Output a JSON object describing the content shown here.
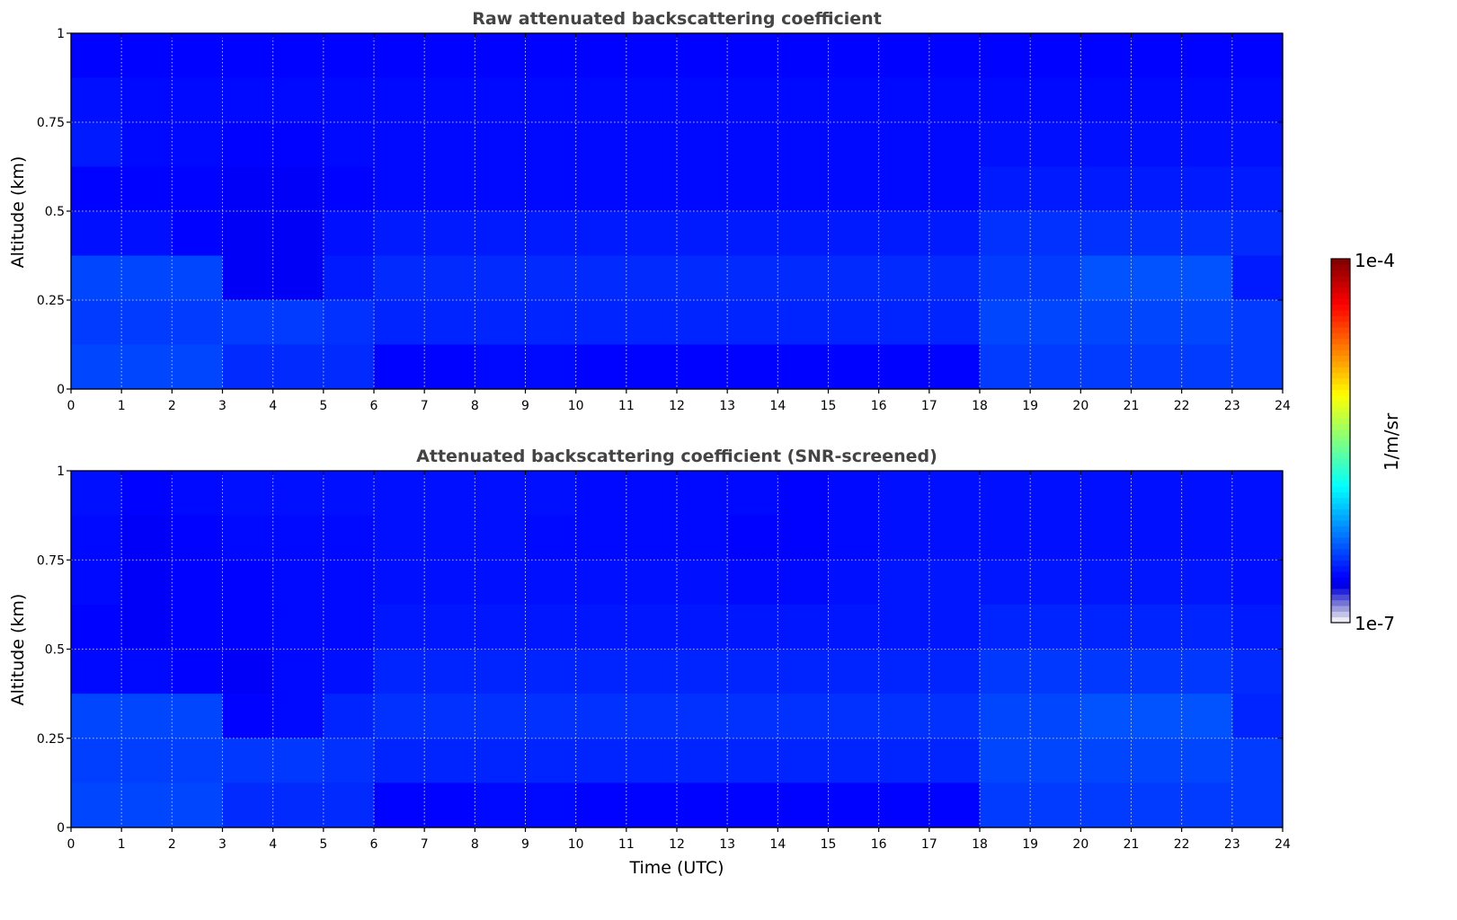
{
  "chart_data": {
    "type": "heatmap",
    "colormap": "jet",
    "colorbar": {
      "min_label": "1e-7",
      "max_label": "1e-4",
      "label": "1/m/sr",
      "log10_range": [
        -7,
        -4
      ]
    },
    "xlabel": "Time (UTC)",
    "xlim": [
      0,
      24
    ],
    "xticks": [
      "0",
      "1",
      "2",
      "3",
      "4",
      "5",
      "6",
      "7",
      "8",
      "9",
      "10",
      "11",
      "12",
      "13",
      "14",
      "15",
      "16",
      "17",
      "18",
      "19",
      "20",
      "21",
      "22",
      "23",
      "24"
    ],
    "ylim": [
      0,
      1
    ],
    "yticks": [
      "0",
      "0.25",
      "0.5",
      "0.75",
      "1"
    ],
    "grid": true,
    "panels": [
      {
        "title": "Raw attenuated backscattering coefficient",
        "ylabel": "Altitude (km)",
        "altitude_bins_top_to_bottom": [
          1.0,
          0.875,
          0.75,
          0.625,
          0.5,
          0.375,
          0.25,
          0.125
        ],
        "log10_values": [
          [
            -6.62,
            -6.62,
            -6.62,
            -6.62,
            -6.62,
            -6.62,
            -6.62,
            -6.62,
            -6.62,
            -6.62,
            -6.62,
            -6.62,
            -6.62,
            -6.62,
            -6.62,
            -6.62,
            -6.62,
            -6.62,
            -6.62,
            -6.62,
            -6.62,
            -6.62,
            -6.62,
            -6.62
          ],
          [
            -6.58,
            -6.6,
            -6.6,
            -6.6,
            -6.6,
            -6.6,
            -6.6,
            -6.6,
            -6.6,
            -6.6,
            -6.6,
            -6.6,
            -6.6,
            -6.6,
            -6.6,
            -6.6,
            -6.6,
            -6.6,
            -6.6,
            -6.6,
            -6.6,
            -6.6,
            -6.6,
            -6.6
          ],
          [
            -6.55,
            -6.6,
            -6.6,
            -6.62,
            -6.62,
            -6.6,
            -6.6,
            -6.6,
            -6.6,
            -6.6,
            -6.6,
            -6.6,
            -6.6,
            -6.6,
            -6.6,
            -6.6,
            -6.6,
            -6.6,
            -6.58,
            -6.58,
            -6.58,
            -6.58,
            -6.58,
            -6.58
          ],
          [
            -6.62,
            -6.62,
            -6.62,
            -6.64,
            -6.64,
            -6.62,
            -6.6,
            -6.6,
            -6.6,
            -6.6,
            -6.6,
            -6.6,
            -6.6,
            -6.6,
            -6.6,
            -6.6,
            -6.6,
            -6.6,
            -6.55,
            -6.55,
            -6.55,
            -6.55,
            -6.55,
            -6.55
          ],
          [
            -6.58,
            -6.58,
            -6.62,
            -6.65,
            -6.65,
            -6.58,
            -6.55,
            -6.55,
            -6.55,
            -6.55,
            -6.55,
            -6.55,
            -6.55,
            -6.55,
            -6.55,
            -6.55,
            -6.55,
            -6.55,
            -6.48,
            -6.48,
            -6.48,
            -6.48,
            -6.48,
            -6.5
          ],
          [
            -6.42,
            -6.42,
            -6.42,
            -6.65,
            -6.65,
            -6.55,
            -6.5,
            -6.5,
            -6.5,
            -6.5,
            -6.5,
            -6.5,
            -6.5,
            -6.5,
            -6.5,
            -6.5,
            -6.5,
            -6.5,
            -6.45,
            -6.45,
            -6.38,
            -6.38,
            -6.38,
            -6.55
          ],
          [
            -6.45,
            -6.45,
            -6.45,
            -6.45,
            -6.45,
            -6.48,
            -6.52,
            -6.52,
            -6.52,
            -6.52,
            -6.52,
            -6.52,
            -6.52,
            -6.52,
            -6.52,
            -6.52,
            -6.52,
            -6.52,
            -6.42,
            -6.42,
            -6.42,
            -6.42,
            -6.42,
            -6.45
          ],
          [
            -6.42,
            -6.42,
            -6.42,
            -6.5,
            -6.5,
            -6.5,
            -6.62,
            -6.62,
            -6.6,
            -6.6,
            -6.62,
            -6.62,
            -6.62,
            -6.62,
            -6.62,
            -6.62,
            -6.62,
            -6.62,
            -6.45,
            -6.45,
            -6.45,
            -6.45,
            -6.45,
            -6.45
          ]
        ]
      },
      {
        "title": "Attenuated backscattering coefficient (SNR-screened)",
        "ylabel": "Altitude (km)",
        "altitude_bins_top_to_bottom": [
          1.0,
          0.875,
          0.75,
          0.625,
          0.5,
          0.375,
          0.25,
          0.125
        ],
        "log10_values": [
          [
            -6.58,
            -6.62,
            -6.6,
            -6.58,
            -6.58,
            -6.58,
            -6.58,
            -6.58,
            -6.58,
            -6.58,
            -6.6,
            -6.6,
            -6.6,
            -6.6,
            -6.62,
            -6.6,
            -6.58,
            -6.58,
            -6.58,
            -6.58,
            -6.58,
            -6.58,
            -6.58,
            -6.58
          ],
          [
            -6.6,
            -6.64,
            -6.62,
            -6.6,
            -6.6,
            -6.6,
            -6.58,
            -6.58,
            -6.58,
            -6.6,
            -6.6,
            -6.6,
            -6.6,
            -6.62,
            -6.62,
            -6.6,
            -6.58,
            -6.58,
            -6.58,
            -6.58,
            -6.58,
            -6.58,
            -6.58,
            -6.58
          ],
          [
            -6.6,
            -6.64,
            -6.62,
            -6.62,
            -6.6,
            -6.6,
            -6.58,
            -6.58,
            -6.58,
            -6.58,
            -6.58,
            -6.58,
            -6.58,
            -6.6,
            -6.6,
            -6.58,
            -6.56,
            -6.56,
            -6.56,
            -6.56,
            -6.56,
            -6.56,
            -6.56,
            -6.58
          ],
          [
            -6.62,
            -6.64,
            -6.62,
            -6.62,
            -6.6,
            -6.6,
            -6.56,
            -6.56,
            -6.56,
            -6.56,
            -6.56,
            -6.56,
            -6.56,
            -6.56,
            -6.56,
            -6.56,
            -6.56,
            -6.56,
            -6.52,
            -6.52,
            -6.52,
            -6.52,
            -6.52,
            -6.55
          ],
          [
            -6.6,
            -6.6,
            -6.62,
            -6.64,
            -6.6,
            -6.58,
            -6.52,
            -6.52,
            -6.52,
            -6.52,
            -6.52,
            -6.52,
            -6.52,
            -6.52,
            -6.52,
            -6.52,
            -6.52,
            -6.52,
            -6.46,
            -6.46,
            -6.46,
            -6.46,
            -6.46,
            -6.5
          ],
          [
            -6.42,
            -6.42,
            -6.42,
            -6.62,
            -6.6,
            -6.52,
            -6.48,
            -6.48,
            -6.48,
            -6.48,
            -6.48,
            -6.48,
            -6.48,
            -6.48,
            -6.48,
            -6.48,
            -6.48,
            -6.48,
            -6.42,
            -6.42,
            -6.38,
            -6.38,
            -6.38,
            -6.52
          ],
          [
            -6.44,
            -6.44,
            -6.44,
            -6.46,
            -6.46,
            -6.48,
            -6.52,
            -6.52,
            -6.52,
            -6.52,
            -6.52,
            -6.52,
            -6.52,
            -6.52,
            -6.52,
            -6.52,
            -6.52,
            -6.52,
            -6.42,
            -6.42,
            -6.42,
            -6.42,
            -6.42,
            -6.45
          ],
          [
            -6.42,
            -6.42,
            -6.42,
            -6.5,
            -6.5,
            -6.5,
            -6.62,
            -6.62,
            -6.6,
            -6.6,
            -6.62,
            -6.62,
            -6.62,
            -6.62,
            -6.62,
            -6.62,
            -6.62,
            -6.62,
            -6.45,
            -6.45,
            -6.45,
            -6.45,
            -6.45,
            -6.45
          ]
        ]
      }
    ]
  }
}
